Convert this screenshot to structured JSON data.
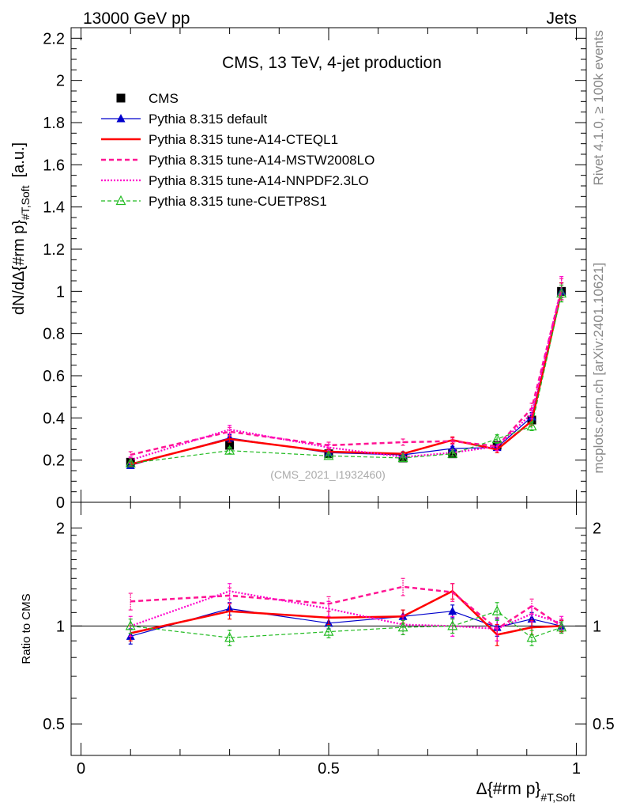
{
  "header": {
    "left": "13000 GeV pp",
    "right": "Jets"
  },
  "side_labels": {
    "rivet": "Rivet 4.1.0, ≥ 100k events",
    "mcplots": "mcplots.cern.ch [arXiv:2401.10621]"
  },
  "chart_data": [
    {
      "type": "line",
      "panel": "main",
      "title": "CMS, 13 TeV, 4-jet production",
      "watermark": "(CMS_2021_I1932460)",
      "ylabel": "dN/dΔ{#rm p}",
      "ylabel_sub": "#T,Soft",
      "ylabel_unit": "[a.u.]",
      "xlabel": "Δ{#rm p}",
      "xlabel_sub": "#T,Soft",
      "xlim": [
        -0.02,
        1.02
      ],
      "ylim": [
        0,
        2.25
      ],
      "x_ticks": [
        0,
        0.5,
        1
      ],
      "x_tick_labels": [
        "0",
        "0.5",
        "1"
      ],
      "y_ticks": [
        0,
        0.2,
        0.4,
        0.6,
        0.8,
        1,
        1.2,
        1.4,
        1.6,
        1.8,
        2,
        2.2
      ],
      "y_tick_labels": [
        "0",
        "0.2",
        "0.4",
        "0.6",
        "0.8",
        "1",
        "1.2",
        "1.4",
        "1.6",
        "1.8",
        "2",
        "2.2"
      ],
      "x": [
        0.1,
        0.3,
        0.5,
        0.65,
        0.75,
        0.84,
        0.91,
        0.97
      ],
      "series": [
        {
          "name": "CMS",
          "color": "#000000",
          "style": "data",
          "values": [
            0.19,
            0.27,
            0.23,
            0.21,
            0.23,
            0.27,
            0.39,
            1.0
          ],
          "errors": [
            0.01,
            0.01,
            0.01,
            0.01,
            0.01,
            0.01,
            0.01,
            0.01
          ]
        },
        {
          "name": "Pythia 8.315 default",
          "color": "#0000cc",
          "style": "blue-triangle",
          "values": [
            0.175,
            0.305,
            0.235,
            0.225,
            0.255,
            0.26,
            0.405,
            1.0
          ],
          "errors": [
            0.01,
            0.015,
            0.01,
            0.01,
            0.01,
            0.015,
            0.02,
            0.04
          ]
        },
        {
          "name": "Pythia 8.315 tune-A14-CTEQL1",
          "color": "#ff0000",
          "style": "solid",
          "values": [
            0.18,
            0.3,
            0.24,
            0.23,
            0.295,
            0.25,
            0.385,
            1.0
          ],
          "errors": [
            0.01,
            0.015,
            0.01,
            0.01,
            0.015,
            0.015,
            0.02,
            0.04
          ]
        },
        {
          "name": "Pythia 8.315 tune-A14-MSTW2008LO",
          "color": "#ff1493",
          "style": "dashed",
          "values": [
            0.225,
            0.335,
            0.27,
            0.285,
            0.29,
            0.265,
            0.445,
            1.01
          ],
          "errors": [
            0.015,
            0.02,
            0.015,
            0.015,
            0.015,
            0.02,
            0.025,
            0.05
          ]
        },
        {
          "name": "Pythia 8.315 tune-A14-NNPDF2.3LO",
          "color": "#ff00cc",
          "style": "dotted",
          "values": [
            0.2,
            0.345,
            0.26,
            0.215,
            0.235,
            0.265,
            0.42,
            1.02
          ],
          "errors": [
            0.015,
            0.02,
            0.015,
            0.015,
            0.015,
            0.02,
            0.025,
            0.05
          ]
        },
        {
          "name": "Pythia 8.315 tune-CUETP8S1",
          "color": "#22bb22",
          "style": "green-dashed",
          "values": [
            0.185,
            0.245,
            0.22,
            0.21,
            0.23,
            0.3,
            0.36,
            0.99
          ],
          "errors": [
            0.01,
            0.015,
            0.01,
            0.01,
            0.01,
            0.02,
            0.02,
            0.04
          ]
        }
      ]
    },
    {
      "type": "line",
      "panel": "ratio",
      "ylabel": "Ratio to CMS",
      "yscale": "log",
      "xlim": [
        -0.02,
        1.02
      ],
      "ylim": [
        0.4,
        2.4
      ],
      "y_ticks": [
        0.5,
        1,
        2
      ],
      "y_tick_labels": [
        "0.5",
        "1",
        "2"
      ],
      "x": [
        0.1,
        0.3,
        0.5,
        0.65,
        0.75,
        0.84,
        0.91,
        0.97
      ],
      "series": [
        {
          "name": "Pythia 8.315 default",
          "values": [
            0.93,
            1.13,
            1.02,
            1.07,
            1.11,
            0.99,
            1.05,
            1.0
          ],
          "errors": [
            0.05,
            0.05,
            0.04,
            0.05,
            0.05,
            0.06,
            0.05,
            0.04
          ]
        },
        {
          "name": "Pythia 8.315 tune-A14-CTEQL1",
          "values": [
            0.95,
            1.11,
            1.06,
            1.07,
            1.28,
            0.94,
            0.99,
            1.0
          ],
          "errors": [
            0.05,
            0.06,
            0.05,
            0.05,
            0.07,
            0.07,
            0.05,
            0.04
          ]
        },
        {
          "name": "Pythia 8.315 tune-A14-MSTW2008LO",
          "values": [
            1.19,
            1.24,
            1.17,
            1.32,
            1.27,
            0.98,
            1.15,
            1.0
          ],
          "errors": [
            0.07,
            0.07,
            0.06,
            0.08,
            0.08,
            0.08,
            0.06,
            0.05
          ]
        },
        {
          "name": "Pythia 8.315 tune-A14-NNPDF2.3LO",
          "values": [
            1.0,
            1.28,
            1.13,
            1.01,
            1.0,
            0.98,
            1.09,
            1.02
          ],
          "errors": [
            0.07,
            0.07,
            0.06,
            0.07,
            0.07,
            0.08,
            0.06,
            0.05
          ]
        },
        {
          "name": "Pythia 8.315 tune-CUETP8S1",
          "values": [
            1.0,
            0.92,
            0.96,
            0.99,
            1.0,
            1.11,
            0.92,
            0.99
          ],
          "errors": [
            0.05,
            0.05,
            0.04,
            0.05,
            0.05,
            0.07,
            0.05,
            0.04
          ]
        }
      ]
    }
  ]
}
